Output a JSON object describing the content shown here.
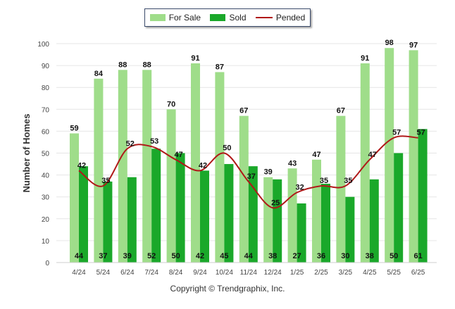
{
  "legend": {
    "for_sale": "For Sale",
    "sold": "Sold",
    "pended": "Pended"
  },
  "copyright": "Copyright © Trendgraphix, Inc.",
  "colors": {
    "for_sale": "#9fdd8a",
    "sold": "#1aa82a",
    "pended": "#b01818",
    "grid": "#e6e6e6",
    "axis_text": "#444444"
  },
  "chart_data": {
    "type": "bar",
    "ylabel": "Number of Homes",
    "xlabel": "",
    "ylim": [
      0,
      100
    ],
    "yticks": [
      0,
      10,
      20,
      30,
      40,
      50,
      60,
      70,
      80,
      90,
      100
    ],
    "grid": true,
    "legend_position": "top-center",
    "categories": [
      "4/24",
      "5/24",
      "6/24",
      "7/24",
      "8/24",
      "9/24",
      "10/24",
      "11/24",
      "12/24",
      "1/25",
      "2/25",
      "3/25",
      "4/25",
      "5/25",
      "6/25"
    ],
    "series": [
      {
        "name": "For Sale",
        "type": "bar",
        "values": [
          59,
          84,
          88,
          88,
          70,
          91,
          87,
          67,
          39,
          43,
          47,
          67,
          91,
          98,
          97
        ]
      },
      {
        "name": "Sold",
        "type": "bar",
        "values": [
          44,
          37,
          39,
          52,
          50,
          42,
          45,
          44,
          38,
          27,
          36,
          30,
          38,
          50,
          61
        ]
      },
      {
        "name": "Pended",
        "type": "line",
        "values": [
          42,
          35,
          52,
          53,
          47,
          42,
          50,
          37,
          25,
          32,
          35,
          35,
          47,
          57,
          57
        ]
      }
    ]
  }
}
